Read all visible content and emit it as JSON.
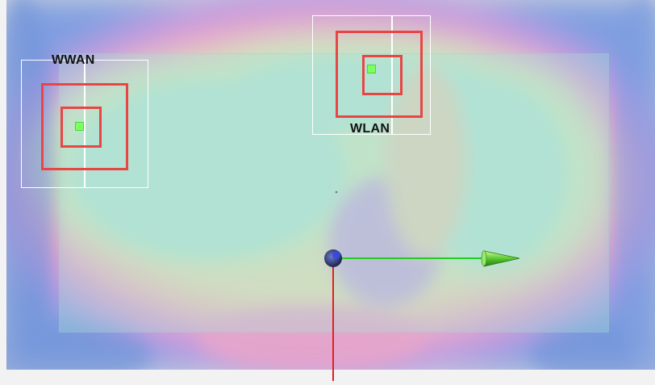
{
  "access_points": [
    {
      "id": "wwan",
      "label": "WWAN",
      "shape_color": "#e84545",
      "center_color": "#7dff5e"
    },
    {
      "id": "wlan",
      "label": "WLAN",
      "shape_color": "#e84545",
      "center_color": "#7dff5e"
    }
  ],
  "axes": {
    "x_axis_color": "#22cc22",
    "y_axis_color": "#e02020",
    "origin_color": "#2a3a8a"
  },
  "heatmap": {
    "palette": [
      "#7ea5e6",
      "#c49ee0",
      "#f0a7c8",
      "#f1d0b0",
      "#d7e6b8",
      "#a9e0d2"
    ]
  }
}
